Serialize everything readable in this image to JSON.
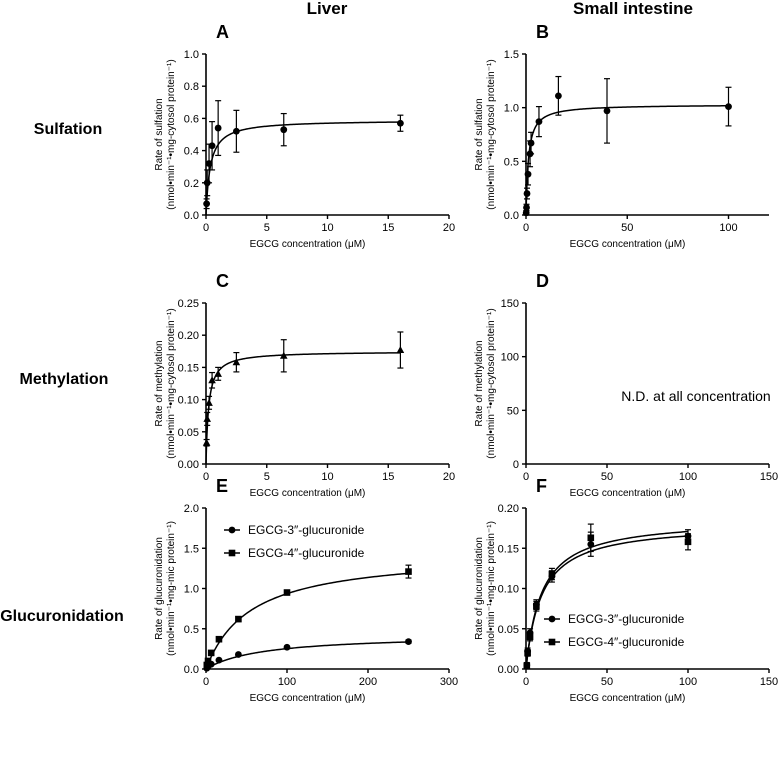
{
  "column_titles": [
    "Liver",
    "Small intestine"
  ],
  "row_titles": [
    "Sulfation",
    "Methylation",
    "Glucuronidation"
  ],
  "chart_data": [
    {
      "id": "A",
      "type": "scatter",
      "fit": "michaelis-menten",
      "letter": "A",
      "xlabel": "EGCG concentration (μM)",
      "ylabel": [
        "Rate of sulfation",
        "(nmol•min⁻¹•mg-cytosol protein⁻¹)"
      ],
      "xlim": [
        0,
        20
      ],
      "xticks": [
        0,
        5,
        10,
        15,
        20
      ],
      "ylim": [
        0,
        1.0
      ],
      "yticks": [
        "0.0",
        "0.2",
        "0.4",
        "0.6",
        "0.8",
        "1.0"
      ],
      "legend": [],
      "series": [
        {
          "marker": "circle",
          "x": [
            0.05,
            0.1,
            0.25,
            0.5,
            1.0,
            2.5,
            6.4,
            16
          ],
          "y": [
            0.07,
            0.2,
            0.32,
            0.43,
            0.54,
            0.52,
            0.53,
            0.57
          ],
          "err": [
            0.03,
            0.08,
            0.12,
            0.15,
            0.17,
            0.13,
            0.1,
            0.05
          ],
          "vmax": 0.59,
          "km": 0.35
        }
      ]
    },
    {
      "id": "B",
      "type": "scatter",
      "fit": "michaelis-menten",
      "letter": "B",
      "xlabel": "EGCG concentration (μM)",
      "ylabel": [
        "Rate of sulfation",
        "(nmol•min⁻¹•mg-cytosol protein⁻¹)"
      ],
      "xlim": [
        0,
        120
      ],
      "xticks": [
        0,
        50,
        100
      ],
      "ylim": [
        0,
        1.5
      ],
      "yticks": [
        "0.0",
        "0.5",
        "1.0",
        "1.5"
      ],
      "legend": [],
      "series": [
        {
          "marker": "circle",
          "x": [
            0.1,
            0.25,
            0.5,
            1.0,
            2.0,
            2.5,
            6.4,
            16,
            40,
            100
          ],
          "y": [
            0.02,
            0.07,
            0.2,
            0.38,
            0.57,
            0.67,
            0.87,
            1.11,
            0.97,
            1.01
          ],
          "err": [
            0.02,
            0.03,
            0.05,
            0.1,
            0.12,
            0.1,
            0.14,
            0.18,
            0.3,
            0.18
          ],
          "vmax": 1.03,
          "km": 1.2
        }
      ]
    },
    {
      "id": "C",
      "type": "scatter",
      "fit": "michaelis-menten",
      "letter": "C",
      "xlabel": "EGCG concentration (μM)",
      "ylabel": [
        "Rate of methylation",
        "(nmol•min⁻¹•mg-cytosol protein⁻¹)"
      ],
      "xlim": [
        0,
        20
      ],
      "xticks": [
        0,
        5,
        10,
        15,
        20
      ],
      "ylim": [
        0,
        0.25
      ],
      "yticks": [
        "0.00",
        "0.05",
        "0.10",
        "0.15",
        "0.20",
        "0.25"
      ],
      "legend": [],
      "series": [
        {
          "marker": "triangle",
          "x": [
            0.05,
            0.1,
            0.25,
            0.5,
            1.0,
            2.5,
            6.4,
            16
          ],
          "y": [
            0.033,
            0.07,
            0.095,
            0.13,
            0.14,
            0.158,
            0.168,
            0.177
          ],
          "err": [
            0.005,
            0.01,
            0.01,
            0.012,
            0.01,
            0.015,
            0.025,
            0.028
          ],
          "vmax": 0.175,
          "km": 0.22
        }
      ]
    },
    {
      "id": "D",
      "type": "scatter",
      "fit": "none",
      "letter": "D",
      "xlabel": "EGCG concentration (μM)",
      "ylabel": [
        "Rate of methylation",
        "(nmol•min⁻¹•mg-cytosol protein⁻¹)"
      ],
      "xlim": [
        0,
        150
      ],
      "xticks": [
        0,
        50,
        100,
        150
      ],
      "ylim": [
        0,
        150
      ],
      "yticks": [
        "0",
        "50",
        "100",
        "150"
      ],
      "note": "N.D. at all concentration",
      "legend": [],
      "series": []
    },
    {
      "id": "E",
      "type": "scatter",
      "fit": "michaelis-menten",
      "letter": "E",
      "xlabel": "EGCG concentration (μM)",
      "ylabel": [
        "Rate of glucuronidation",
        "(nmol•min⁻¹•mg-mic protein⁻¹)"
      ],
      "xlim": [
        0,
        300
      ],
      "xticks": [
        0,
        100,
        200,
        300
      ],
      "ylim": [
        0,
        2.0
      ],
      "yticks": [
        "0.0",
        "0.5",
        "1.0",
        "1.5",
        "2.0"
      ],
      "legend_pos": "top-left",
      "legend": [
        "EGCG-3″-glucuronide",
        "EGCG-4″-glucuronide"
      ],
      "series": [
        {
          "name": "EGCG-3″-glucuronide",
          "marker": "circle",
          "x": [
            1,
            2.5,
            6.4,
            16,
            40,
            100,
            250
          ],
          "y": [
            0.01,
            0.03,
            0.06,
            0.11,
            0.18,
            0.27,
            0.34
          ],
          "err": [
            0.005,
            0.005,
            0.01,
            0.01,
            0.01,
            0.015,
            0.02
          ],
          "vmax": 0.43,
          "km": 70
        },
        {
          "name": "EGCG-4″-glucuronide",
          "marker": "square",
          "x": [
            1,
            2.5,
            6.4,
            16,
            40,
            100,
            250
          ],
          "y": [
            0.05,
            0.1,
            0.2,
            0.37,
            0.62,
            0.95,
            1.21
          ],
          "err": [
            0.01,
            0.01,
            0.02,
            0.03,
            0.03,
            0.03,
            0.08
          ],
          "vmax": 1.45,
          "km": 55
        }
      ]
    },
    {
      "id": "F",
      "type": "scatter",
      "fit": "michaelis-menten",
      "letter": "F",
      "xlabel": "EGCG concentration (μM)",
      "ylabel": [
        "Rate of glucuronidation",
        "(nmol•min⁻¹•mg-mic protein⁻¹)"
      ],
      "xlim": [
        0,
        150
      ],
      "xticks": [
        0,
        50,
        100,
        150
      ],
      "ylim": [
        0,
        0.2
      ],
      "yticks": [
        "0.00",
        "0.05",
        "0.10",
        "0.15",
        "0.20"
      ],
      "legend_pos": "bottom-right",
      "legend": [
        "EGCG-3″-glucuronide",
        "EGCG-4″-glucuronide"
      ],
      "series": [
        {
          "name": "EGCG-3″-glucuronide",
          "marker": "circle",
          "x": [
            0.5,
            1,
            2.5,
            6.4,
            16,
            40,
            100
          ],
          "y": [
            0.005,
            0.022,
            0.045,
            0.08,
            0.115,
            0.155,
            0.165
          ],
          "err": [
            0.003,
            0.004,
            0.005,
            0.006,
            0.007,
            0.015,
            0.008
          ],
          "vmax": 0.187,
          "km": 9.5
        },
        {
          "name": "EGCG-4″-glucuronide",
          "marker": "square",
          "x": [
            0.5,
            1,
            2.5,
            6.4,
            16,
            40,
            100
          ],
          "y": [
            0.004,
            0.02,
            0.04,
            0.078,
            0.118,
            0.163,
            0.158
          ],
          "err": [
            0.003,
            0.004,
            0.005,
            0.006,
            0.007,
            0.017,
            0.01
          ],
          "vmax": 0.181,
          "km": 9.5
        }
      ]
    }
  ]
}
